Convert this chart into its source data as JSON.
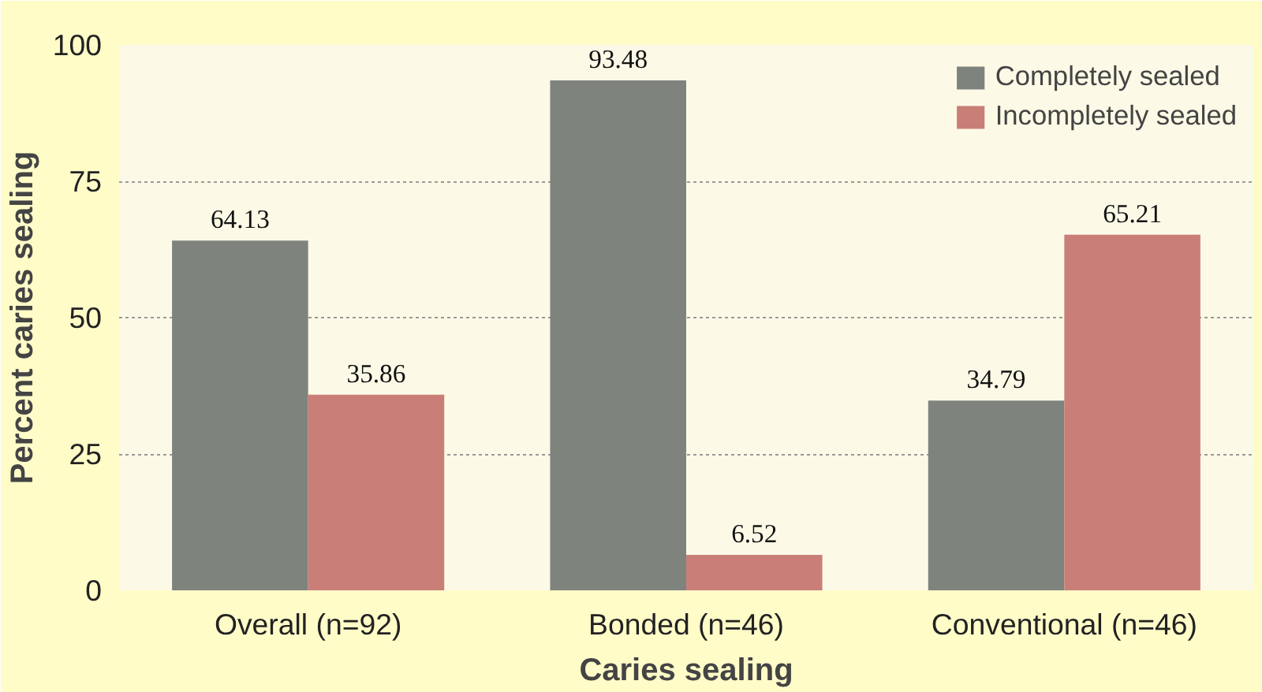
{
  "chart_data": {
    "type": "bar",
    "xlabel": "Caries sealing",
    "ylabel": "Percent caries sealing",
    "categories": [
      "Overall (n=92)",
      "Bonded (n=46)",
      "Conventional (n=46)"
    ],
    "series": [
      {
        "name": "Completely sealed",
        "color": "#7f837e",
        "values": [
          64.13,
          93.48,
          34.79
        ]
      },
      {
        "name": "Incompletely sealed",
        "color": "#c97f78",
        "values": [
          35.86,
          6.52,
          65.21
        ]
      }
    ],
    "ylim": [
      0,
      100
    ],
    "yticks": [
      0,
      25,
      50,
      75,
      100
    ],
    "grid": "y",
    "legend": "top right",
    "data_labels": true
  }
}
